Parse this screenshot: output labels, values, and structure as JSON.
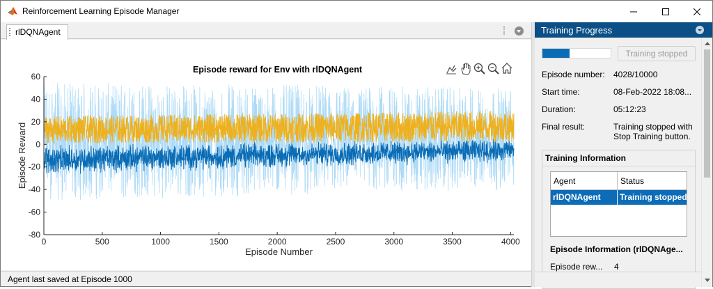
{
  "window": {
    "title": "Reinforcement Learning Episode Manager",
    "accent": "#0b4f86"
  },
  "tabs": [
    {
      "label": "rlDQNAgent"
    }
  ],
  "status_bar": {
    "text": "Agent last saved at Episode 1000"
  },
  "panel": {
    "title": "Training Progress",
    "progress_fraction": 0.4028,
    "stop_button_label": "Training stopped",
    "fields": [
      {
        "label": "Episode number:",
        "value": "4028/10000"
      },
      {
        "label": "Start time:",
        "value": "08-Feb-2022 18:08..."
      },
      {
        "label": "Duration:",
        "value": "05:12:23"
      },
      {
        "label": "Final result:",
        "value": "Training stopped with",
        "value2": "Stop Training button."
      }
    ],
    "training_info": {
      "title": "Training Information",
      "columns": [
        "Agent",
        "Status"
      ],
      "rows": [
        {
          "agent": "rlDQNAgent",
          "status": "Training stopped"
        }
      ]
    },
    "episode_info": {
      "title": "Episode Information (rlDQNAge...",
      "label": "Episode rew...",
      "value": "4"
    }
  },
  "toolbar_icons": [
    "data-tips-icon",
    "pan-icon",
    "zoom-in-icon",
    "zoom-out-icon",
    "home-icon"
  ],
  "chart_data": {
    "type": "line",
    "title": "Episode reward for Env with rlDQNAgent",
    "xlabel": "Episode Number",
    "ylabel": "Episode Reward",
    "xlim": [
      0,
      4028
    ],
    "ylim": [
      -80,
      60
    ],
    "xticks": [
      0,
      500,
      1000,
      1500,
      2000,
      2500,
      3000,
      3500,
      4000
    ],
    "yticks": [
      -80,
      -60,
      -40,
      -20,
      0,
      20,
      40,
      60
    ],
    "grid": false,
    "series": [
      {
        "color": "#a9d8f5",
        "description": "per-episode reward",
        "range_start": [
          -50,
          55
        ],
        "range_end": [
          -40,
          50
        ]
      },
      {
        "color": "#0a6cb5",
        "description": "average reward",
        "range_start": [
          -35,
          15
        ],
        "range_end": [
          -20,
          15
        ]
      },
      {
        "color": "#edb120",
        "description": "episode Q0",
        "range_start": [
          -5,
          25
        ],
        "range_end": [
          -5,
          30
        ]
      }
    ]
  }
}
